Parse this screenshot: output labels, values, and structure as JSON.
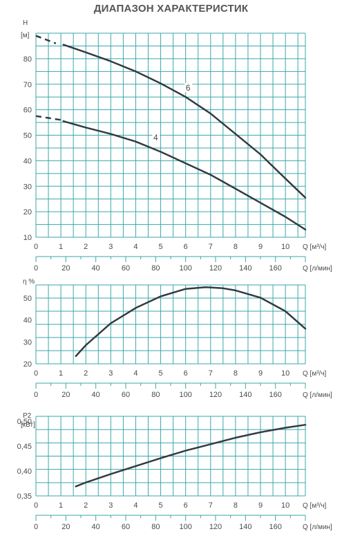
{
  "title": "ДИАПАЗОН ХАРАКТЕРИСТИК",
  "colors": {
    "grid": "#3aa6ad",
    "curve": "#333b40",
    "text": "#4a4a4a",
    "title": "#555555"
  },
  "x_axis": {
    "q_m3h": {
      "unit": "Q [м³/ч]",
      "ticks": [
        "0",
        "1",
        "2",
        "3",
        "4",
        "5",
        "6",
        "7",
        "8",
        "9",
        "10"
      ]
    },
    "q_lmin": {
      "unit": "Q [л/мин]",
      "ticks": [
        "0",
        "20",
        "40",
        "60",
        "80",
        "100",
        "120",
        "140",
        "160"
      ]
    }
  },
  "chart_data": [
    {
      "type": "line",
      "ylabel_name": "H",
      "ylabel_unit": "[м]",
      "xlim": [
        0,
        10.8
      ],
      "ylim": [
        10,
        90
      ],
      "yticks": [
        "10",
        "20",
        "30",
        "40",
        "50",
        "60",
        "70",
        "80"
      ],
      "series": [
        {
          "name": "6",
          "dashed": {
            "x": [
              0,
              0.8
            ],
            "y": [
              89,
              86
            ]
          },
          "x": [
            1.1,
            2,
            3,
            4,
            5,
            6,
            7,
            8,
            9,
            10,
            10.8
          ],
          "y": [
            85.5,
            82.5,
            79,
            75,
            70.3,
            65,
            58.5,
            50.5,
            42.5,
            33,
            25.5
          ]
        },
        {
          "name": "4",
          "dashed": {
            "x": [
              0,
              1.0
            ],
            "y": [
              57.5,
              56
            ]
          },
          "x": [
            1.1,
            2,
            3,
            4,
            5,
            6,
            7,
            8,
            9,
            10,
            10.8
          ],
          "y": [
            55.5,
            53,
            50.5,
            47.5,
            43.5,
            39,
            34.5,
            29,
            23.5,
            18,
            13
          ]
        }
      ]
    },
    {
      "type": "line",
      "ylabel_name": "η %",
      "ylabel_unit": "",
      "xlim": [
        0,
        10.8
      ],
      "ylim": [
        20,
        56
      ],
      "yticks": [
        "20",
        "30",
        "40",
        "50"
      ],
      "series": [
        {
          "x": [
            1.6,
            2,
            3,
            4,
            5,
            6,
            6.8,
            7.5,
            8,
            9,
            10,
            10.8
          ],
          "y": [
            23.5,
            28.5,
            38.5,
            45.5,
            50.8,
            54.2,
            55,
            54.5,
            53.5,
            50.2,
            44,
            36
          ]
        }
      ]
    },
    {
      "type": "line",
      "ylabel_name": "P2",
      "ylabel_unit": "[кВт]",
      "xlim": [
        0,
        10.8
      ],
      "ylim": [
        0.35,
        0.51
      ],
      "yticks": [
        "0,35",
        "0,40",
        "0,45",
        "0,50"
      ],
      "series": [
        {
          "x": [
            1.6,
            2,
            3,
            4,
            5,
            6,
            7,
            8,
            9,
            10,
            10.8
          ],
          "y": [
            0.369,
            0.377,
            0.394,
            0.41,
            0.426,
            0.441,
            0.454,
            0.467,
            0.478,
            0.487,
            0.493
          ]
        }
      ]
    }
  ]
}
